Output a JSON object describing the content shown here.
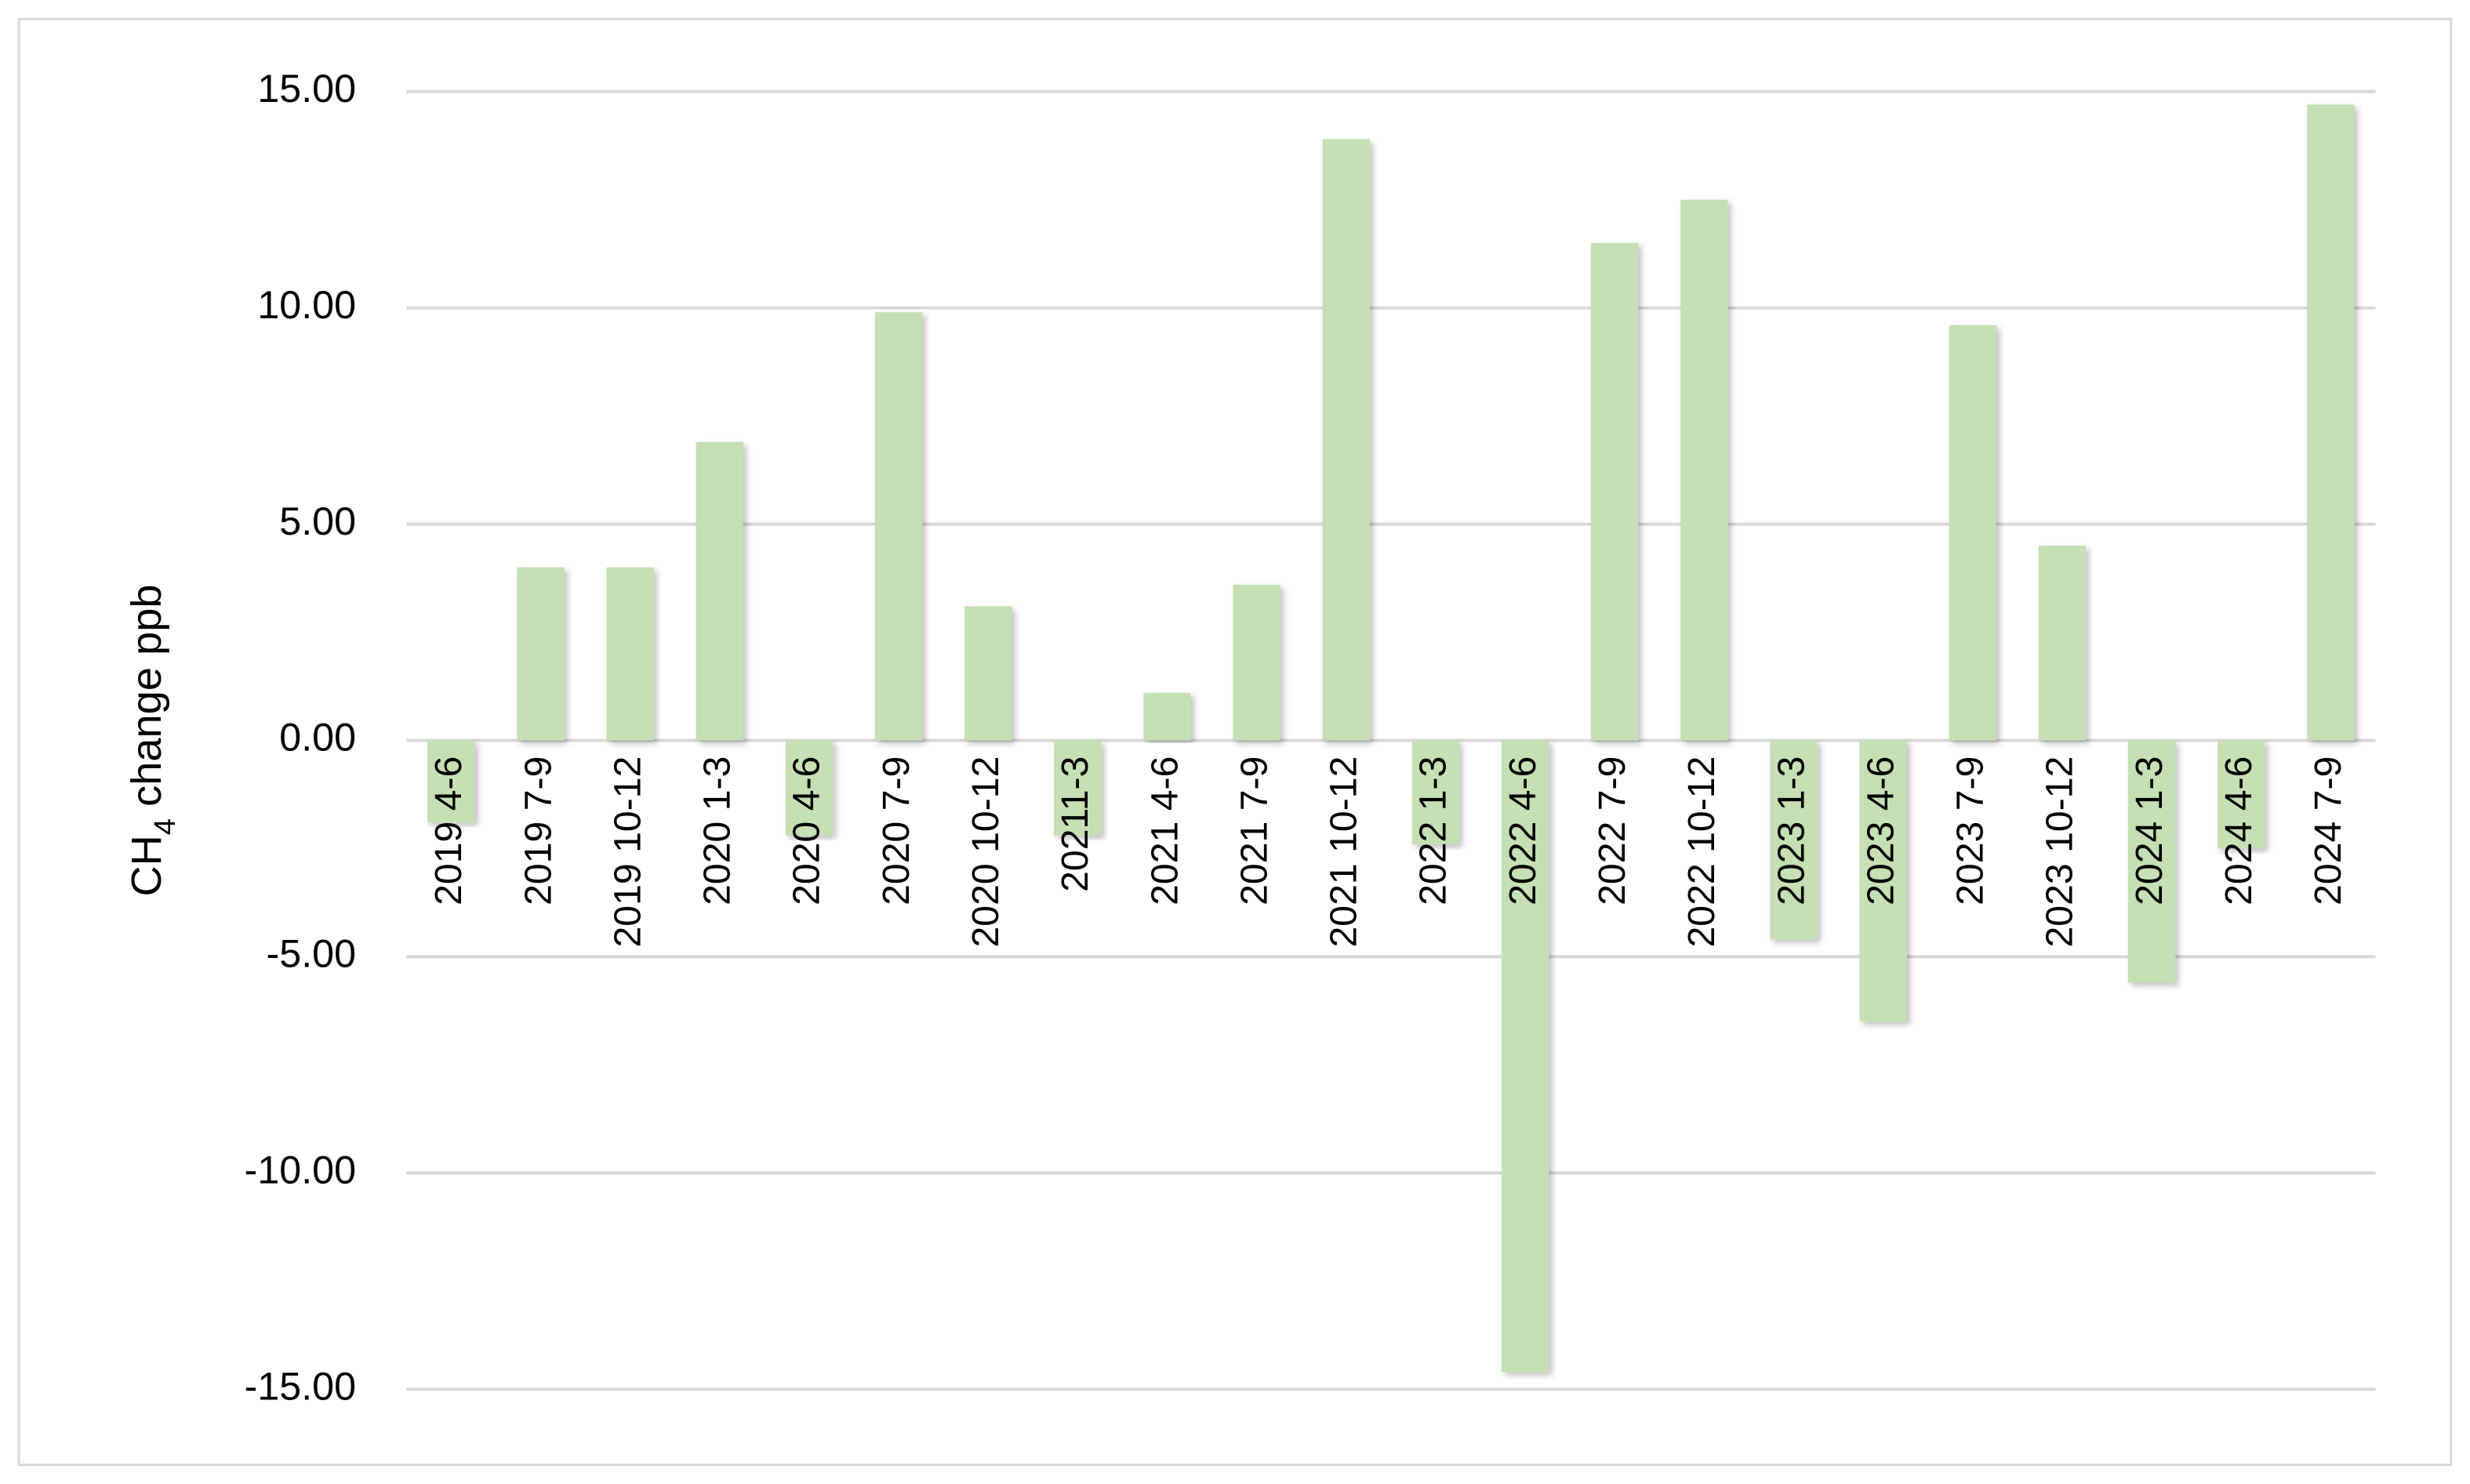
{
  "chart_data": {
    "type": "bar",
    "ylabel": [
      "CH",
      "4",
      " change ppb"
    ],
    "categories": [
      "2019 4-6",
      "2019 7-9",
      "2019 10-12",
      "2020 1-3",
      "2020 4-6",
      "2020 7-9",
      "2020 10-12",
      "20211-3",
      "2021 4-6",
      "2021 7-9",
      "2021 10-12",
      "2022 1-3",
      "2022 4-6",
      "2022 7-9",
      "2022 10-12",
      "2023 1-3",
      "2023 4-6",
      "2023 7-9",
      "2023 10-12",
      "2024 1-3",
      "2024 4-6",
      "2024 7-9"
    ],
    "values": [
      -1.9,
      4.0,
      4.0,
      6.9,
      -2.2,
      9.9,
      3.1,
      -2.2,
      1.1,
      3.6,
      13.9,
      -2.4,
      -14.6,
      11.5,
      12.5,
      -4.6,
      -6.5,
      9.6,
      4.5,
      -5.6,
      -2.5,
      14.7
    ],
    "color": "#c5e0b4",
    "ylim": [
      -15,
      15
    ],
    "yticks": [
      {
        "value": -15,
        "label": "-15.00"
      },
      {
        "value": -10,
        "label": "-10.00"
      },
      {
        "value": -5,
        "label": "-5.00"
      },
      {
        "value": 0,
        "label": "0.00"
      },
      {
        "value": 5,
        "label": "5.00"
      },
      {
        "value": 10,
        "label": "10.00"
      },
      {
        "value": 15,
        "label": "15.00"
      }
    ],
    "grid": true
  }
}
